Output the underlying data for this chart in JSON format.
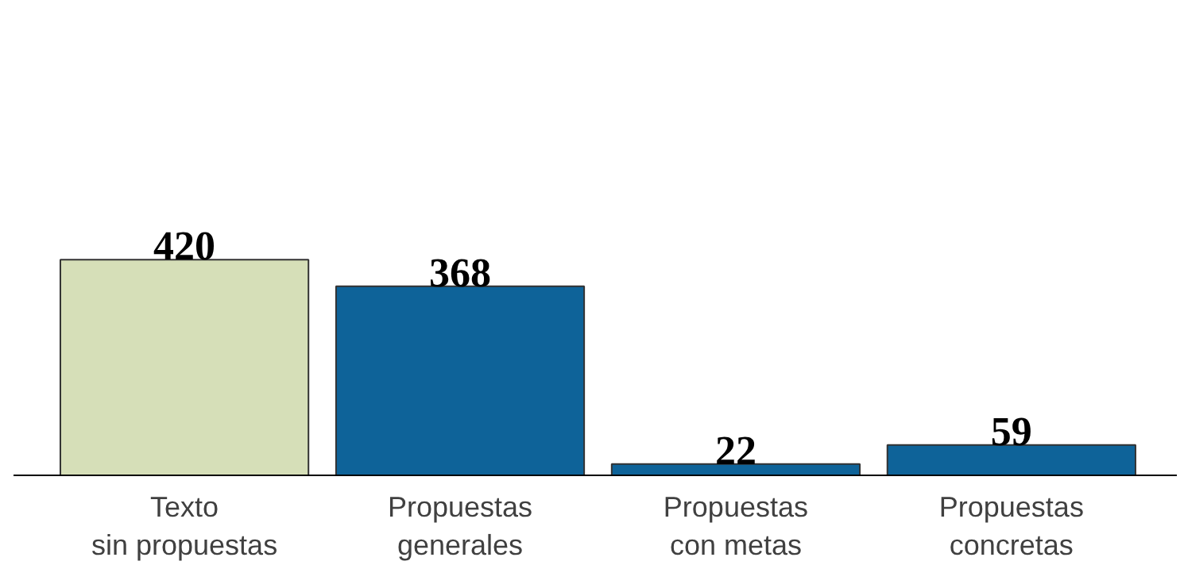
{
  "chart_data": {
    "type": "bar",
    "categories": [
      "Texto\nsin propuestas",
      "Propuestas\ngenerales",
      "Propuestas\ncon metas",
      "Propuestas\nconcretas"
    ],
    "values": [
      420,
      368,
      22,
      59
    ],
    "colors": [
      "#d6dfb8",
      "#0e6399",
      "#0e6399",
      "#0e6399"
    ],
    "data_labels": true
  }
}
